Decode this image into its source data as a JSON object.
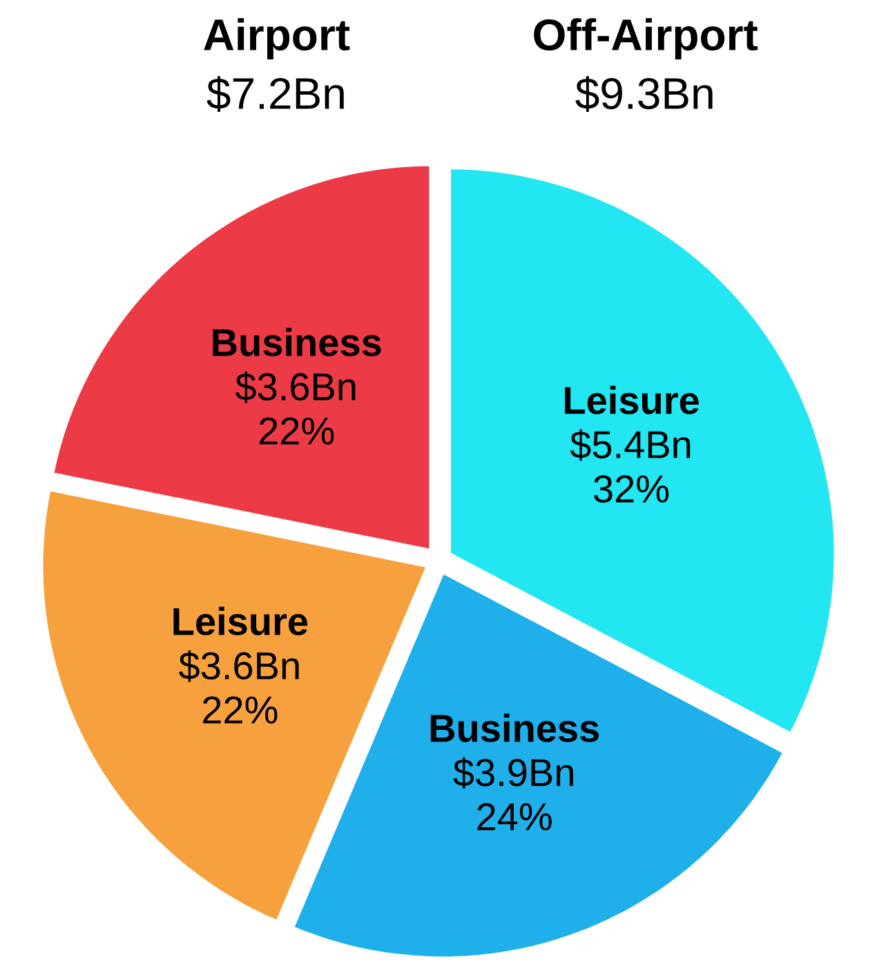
{
  "chart_data": {
    "type": "pie",
    "categories": [
      "Leisure",
      "Business",
      "Leisure",
      "Business"
    ],
    "values": [
      5.4,
      3.9,
      3.6,
      3.6
    ],
    "value_labels": [
      "$5.4Bn",
      "$3.9Bn",
      "$3.6Bn",
      "$3.6Bn"
    ],
    "colors": [
      "#22e6f2",
      "#1fb0ec",
      "#f7a03e",
      "#ec3b46"
    ],
    "annotations": [
      "Airport",
      "$7.2Bn",
      "Off-Airport",
      "$9.3Bn",
      "32%",
      "24%",
      "22%",
      "22%"
    ]
  }
}
